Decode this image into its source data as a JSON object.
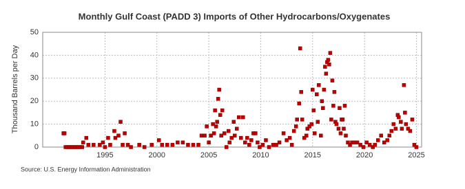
{
  "chart_data": {
    "type": "scatter",
    "title": "Monthly Gulf Coast (PADD 3) Imports of Other Hydrocarbons/Oxygenates",
    "y_label": "Thousand Barrels per Day",
    "source": "Source: U.S. Energy Information Administration",
    "color": "#c00000",
    "x": [
      1991.0,
      1991.1,
      1991.2,
      1991.4,
      1991.6,
      1991.8,
      1992.0,
      1992.2,
      1992.4,
      1992.6,
      1992.8,
      1992.9,
      1993.2,
      1993.4,
      1993.9,
      1994.5,
      1994.8,
      1995.0,
      1995.3,
      1995.5,
      1995.9,
      1996.0,
      1996.3,
      1996.5,
      1996.7,
      1996.9,
      1997.2,
      1997.5,
      1998.3,
      1998.8,
      1999.5,
      2000.2,
      2000.5,
      2001.0,
      2001.5,
      2002.0,
      2002.5,
      2003.0,
      2003.5,
      2004.0,
      2004.3,
      2004.6,
      2004.8,
      2005.0,
      2005.2,
      2005.4,
      2005.5,
      2005.6,
      2005.7,
      2005.8,
      2005.9,
      2006.0,
      2006.1,
      2006.2,
      2006.3,
      2006.5,
      2006.7,
      2006.9,
      2007.0,
      2007.2,
      2007.4,
      2007.5,
      2007.7,
      2007.9,
      2008.1,
      2008.3,
      2008.5,
      2008.7,
      2008.9,
      2009.1,
      2009.3,
      2009.5,
      2009.7,
      2009.9,
      2010.2,
      2010.5,
      2010.8,
      2011.2,
      2011.5,
      2011.8,
      2012.2,
      2012.5,
      2012.8,
      2013.0,
      2013.2,
      2013.4,
      2013.5,
      2013.7,
      2013.8,
      2013.9,
      2014.0,
      2014.2,
      2014.4,
      2014.5,
      2014.7,
      2014.9,
      2015.0,
      2015.1,
      2015.2,
      2015.4,
      2015.5,
      2015.6,
      2015.8,
      2015.9,
      2016.0,
      2016.1,
      2016.2,
      2016.3,
      2016.4,
      2016.5,
      2016.6,
      2016.7,
      2016.8,
      2016.9,
      2017.0,
      2017.1,
      2017.2,
      2017.3,
      2017.5,
      2017.6,
      2017.7,
      2017.8,
      2017.9,
      2018.0,
      2018.1,
      2018.2,
      2018.4,
      2018.6,
      2018.8,
      2019.0,
      2019.3,
      2019.6,
      2019.9,
      2020.2,
      2020.5,
      2020.8,
      2021.0,
      2021.3,
      2021.6,
      2021.9,
      2022.2,
      2022.4,
      2022.6,
      2022.8,
      2023.0,
      2023.2,
      2023.3,
      2023.5,
      2023.6,
      2023.8,
      2023.9,
      2024.0,
      2024.2,
      2024.4,
      2024.6,
      2024.8,
      2025.0
    ],
    "values": [
      6,
      6,
      0,
      0,
      0,
      0,
      0,
      0,
      0,
      0,
      0,
      2,
      4,
      1,
      1,
      1,
      2,
      0,
      4,
      1,
      7,
      4,
      5,
      11,
      1,
      6,
      1,
      0,
      1,
      0,
      1,
      3,
      1,
      1,
      1,
      2,
      2,
      1,
      1,
      1,
      5,
      5,
      9,
      2,
      5,
      10,
      6,
      16,
      9,
      11,
      21,
      25,
      14,
      5,
      16,
      6,
      0,
      7,
      2,
      4,
      11,
      5,
      8,
      13,
      4,
      13,
      2,
      4,
      1,
      3,
      6,
      6,
      2,
      0,
      1,
      3,
      0,
      1,
      1,
      2,
      6,
      3,
      4,
      1,
      7,
      9,
      12,
      19,
      43,
      24,
      12,
      4,
      5,
      8,
      9,
      10,
      25,
      16,
      6,
      23,
      11,
      27,
      5,
      20,
      17,
      25,
      35,
      32,
      37,
      38,
      36,
      41,
      12,
      29,
      18,
      24,
      11,
      10,
      8,
      17,
      6,
      12,
      12,
      8,
      18,
      5,
      2,
      1,
      2,
      2,
      2,
      1,
      0,
      2,
      1,
      0,
      1,
      3,
      5,
      2,
      3,
      5,
      7,
      10,
      8,
      14,
      13,
      11,
      8,
      27,
      15,
      10,
      8,
      7,
      12,
      1,
      0
    ],
    "xlim": [
      1989,
      2025.5
    ],
    "xticks": [
      1995,
      2000,
      2005,
      2010,
      2015,
      2020,
      2025
    ],
    "ylim": [
      0,
      50
    ],
    "yticks": [
      0,
      10,
      20,
      30,
      40,
      50
    ],
    "grid": true
  }
}
